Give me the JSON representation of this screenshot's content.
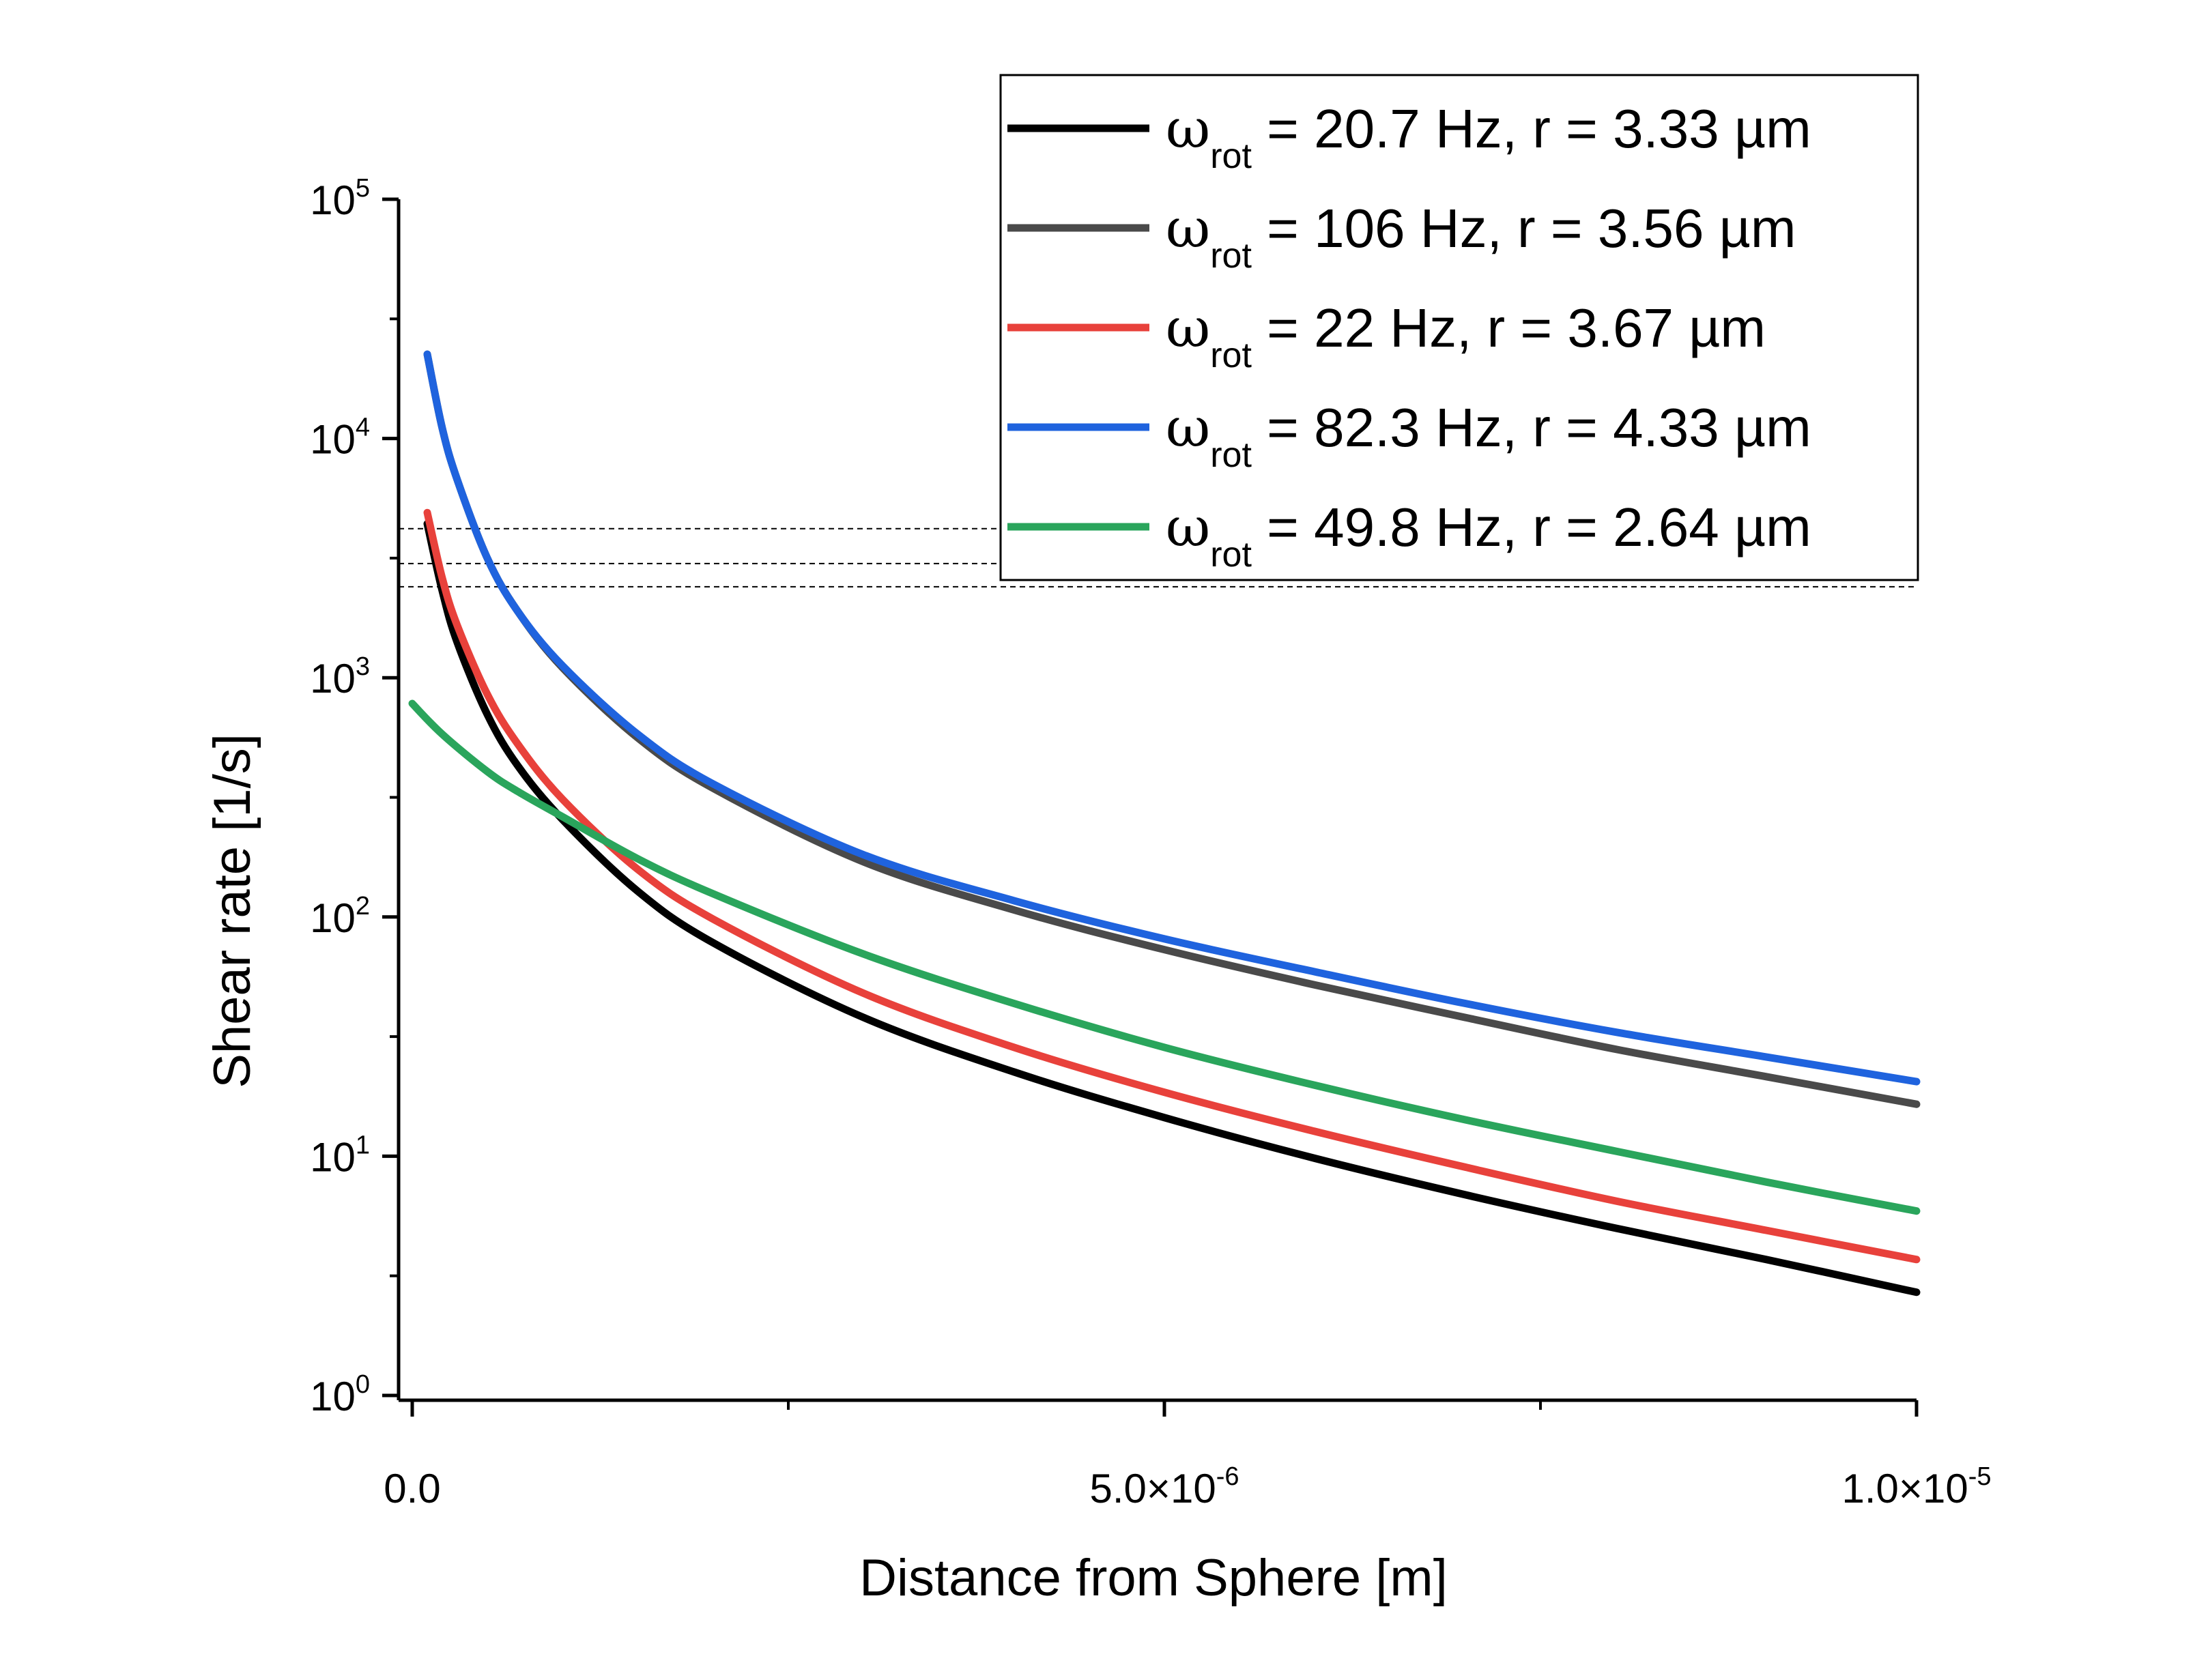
{
  "chart_data": {
    "type": "line",
    "xlabel": "Distance from Sphere [m]",
    "ylabel": "Shear rate [1/s]",
    "xlim": [
      0,
      1e-05
    ],
    "ylim": [
      1,
      100000
    ],
    "yscale": "log",
    "x_ticks": [
      {
        "value": 0,
        "label": "0.0",
        "exp": ""
      },
      {
        "value": 5e-06,
        "label": "5.0×10",
        "exp": "-6"
      },
      {
        "value": 1e-05,
        "label": "1.0×10",
        "exp": "-5"
      }
    ],
    "x_minor_ticks": [
      2.5e-06,
      7.5e-06
    ],
    "y_ticks": [
      {
        "value": 1,
        "base": "10",
        "exp": "0"
      },
      {
        "value": 10,
        "base": "10",
        "exp": "1"
      },
      {
        "value": 100,
        "base": "10",
        "exp": "2"
      },
      {
        "value": 1000,
        "base": "10",
        "exp": "3"
      },
      {
        "value": 10000,
        "base": "10",
        "exp": "4"
      },
      {
        "value": 100000,
        "base": "10",
        "exp": "5"
      }
    ],
    "reference_lines": [
      4200,
      3000,
      2400
    ],
    "legend_position": "top-right",
    "series": [
      {
        "name": "ω_rot = 20.7 Hz, r = 3.33 µm",
        "name_symbol": "ω",
        "name_sub": "rot",
        "name_rest": " = 20.7 Hz, r = 3.33 µm",
        "color": "#000000",
        "x": [
          1e-07,
          2e-07,
          3e-07,
          5e-07,
          7e-07,
          1e-06,
          1.5e-06,
          2e-06,
          3e-06,
          4e-06,
          5e-06,
          6e-06,
          7e-06,
          8e-06,
          9e-06,
          1e-05
        ],
        "y": [
          4400,
          2300,
          1400,
          700,
          430,
          255,
          128,
          78,
          38,
          22.5,
          14.5,
          9.8,
          6.9,
          5.0,
          3.7,
          2.7
        ]
      },
      {
        "name": "ω_rot = 106 Hz, r = 3.56 µm",
        "name_symbol": "ω",
        "name_sub": "rot",
        "name_rest": " = 106 Hz, r = 3.56 µm",
        "color": "#4a4a4a",
        "x": [
          1e-07,
          2e-07,
          3e-07,
          5e-07,
          7e-07,
          1e-06,
          1.5e-06,
          2e-06,
          3e-06,
          4e-06,
          5e-06,
          6e-06,
          7e-06,
          8e-06,
          9e-06,
          1e-05
        ],
        "y": [
          22500,
          11000,
          6700,
          3150,
          1900,
          1100,
          560,
          345,
          170,
          107,
          73,
          52,
          38,
          28,
          21.5,
          16.5
        ]
      },
      {
        "name": "ω_rot = 22 Hz, r = 3.67 µm",
        "name_symbol": "ω",
        "name_sub": "rot",
        "name_rest": " = 22 Hz, r = 3.67 µm",
        "color": "#e8413b",
        "x": [
          1e-07,
          2e-07,
          3e-07,
          5e-07,
          7e-07,
          1e-06,
          1.5e-06,
          2e-06,
          3e-06,
          4e-06,
          5e-06,
          6e-06,
          7e-06,
          8e-06,
          9e-06,
          1e-05
        ],
        "y": [
          4900,
          2600,
          1650,
          850,
          530,
          310,
          158,
          98,
          48,
          28.5,
          18.5,
          12.7,
          9.0,
          6.5,
          4.9,
          3.7
        ]
      },
      {
        "name": "ω_rot = 82.3 Hz, r = 4.33 µm",
        "name_symbol": "ω",
        "name_sub": "rot",
        "name_rest": " = 82.3 Hz, r = 4.33 µm",
        "color": "#1f63de",
        "x": [
          1e-07,
          2e-07,
          3e-07,
          5e-07,
          7e-07,
          1e-06,
          1.5e-06,
          2e-06,
          3e-06,
          4e-06,
          5e-06,
          6e-06,
          7e-06,
          8e-06,
          9e-06,
          1e-05
        ],
        "y": [
          22500,
          11000,
          6700,
          3150,
          1900,
          1120,
          580,
          360,
          182,
          117,
          81,
          59,
          43.5,
          33,
          26,
          20.5
        ]
      },
      {
        "name": "ω_rot = 49.8 Hz, r = 2.64 µm",
        "name_symbol": "ω",
        "name_sub": "rot",
        "name_rest": " = 49.8 Hz, r = 2.64 µm",
        "color": "#2aa55c",
        "x": [
          0,
          2e-07,
          5e-07,
          7e-07,
          1e-06,
          1.5e-06,
          2e-06,
          3e-06,
          4e-06,
          5e-06,
          6e-06,
          7e-06,
          8e-06,
          9e-06,
          1e-05
        ],
        "y": [
          780,
          580,
          405,
          335,
          262,
          175,
          125,
          70,
          43.5,
          28.5,
          19.8,
          14.2,
          10.5,
          7.8,
          5.9
        ]
      }
    ]
  }
}
